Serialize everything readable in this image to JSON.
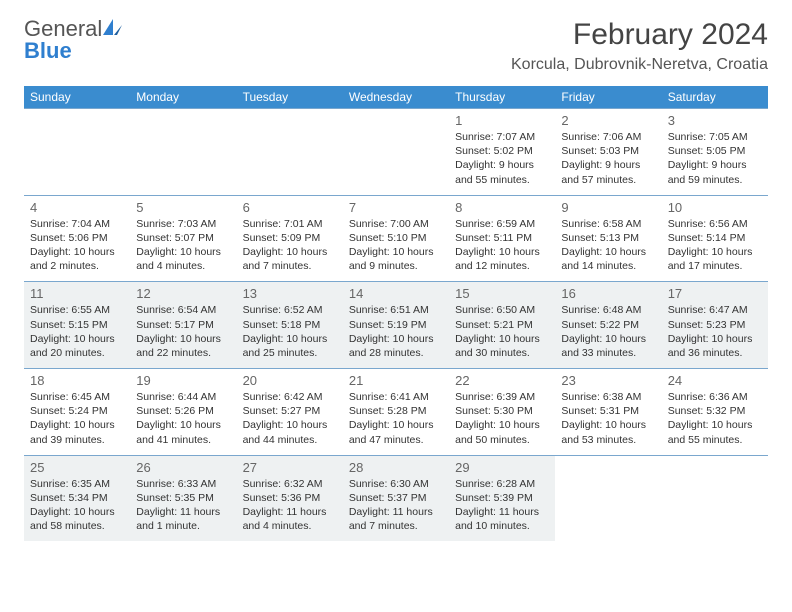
{
  "logo": {
    "line1": "General",
    "line2": "Blue"
  },
  "title": "February 2024",
  "location": "Korcula, Dubrovnik-Neretva, Croatia",
  "header_bg": "#3a8ccf",
  "days_of_week": [
    "Sunday",
    "Monday",
    "Tuesday",
    "Wednesday",
    "Thursday",
    "Friday",
    "Saturday"
  ],
  "weeks": [
    [
      null,
      null,
      null,
      null,
      {
        "n": "1",
        "sr": "7:07 AM",
        "ss": "5:02 PM",
        "dl": "9 hours and 55 minutes."
      },
      {
        "n": "2",
        "sr": "7:06 AM",
        "ss": "5:03 PM",
        "dl": "9 hours and 57 minutes."
      },
      {
        "n": "3",
        "sr": "7:05 AM",
        "ss": "5:05 PM",
        "dl": "9 hours and 59 minutes."
      }
    ],
    [
      {
        "n": "4",
        "sr": "7:04 AM",
        "ss": "5:06 PM",
        "dl": "10 hours and 2 minutes."
      },
      {
        "n": "5",
        "sr": "7:03 AM",
        "ss": "5:07 PM",
        "dl": "10 hours and 4 minutes."
      },
      {
        "n": "6",
        "sr": "7:01 AM",
        "ss": "5:09 PM",
        "dl": "10 hours and 7 minutes."
      },
      {
        "n": "7",
        "sr": "7:00 AM",
        "ss": "5:10 PM",
        "dl": "10 hours and 9 minutes."
      },
      {
        "n": "8",
        "sr": "6:59 AM",
        "ss": "5:11 PM",
        "dl": "10 hours and 12 minutes."
      },
      {
        "n": "9",
        "sr": "6:58 AM",
        "ss": "5:13 PM",
        "dl": "10 hours and 14 minutes."
      },
      {
        "n": "10",
        "sr": "6:56 AM",
        "ss": "5:14 PM",
        "dl": "10 hours and 17 minutes."
      }
    ],
    [
      {
        "n": "11",
        "sr": "6:55 AM",
        "ss": "5:15 PM",
        "dl": "10 hours and 20 minutes."
      },
      {
        "n": "12",
        "sr": "6:54 AM",
        "ss": "5:17 PM",
        "dl": "10 hours and 22 minutes."
      },
      {
        "n": "13",
        "sr": "6:52 AM",
        "ss": "5:18 PM",
        "dl": "10 hours and 25 minutes."
      },
      {
        "n": "14",
        "sr": "6:51 AM",
        "ss": "5:19 PM",
        "dl": "10 hours and 28 minutes."
      },
      {
        "n": "15",
        "sr": "6:50 AM",
        "ss": "5:21 PM",
        "dl": "10 hours and 30 minutes."
      },
      {
        "n": "16",
        "sr": "6:48 AM",
        "ss": "5:22 PM",
        "dl": "10 hours and 33 minutes."
      },
      {
        "n": "17",
        "sr": "6:47 AM",
        "ss": "5:23 PM",
        "dl": "10 hours and 36 minutes."
      }
    ],
    [
      {
        "n": "18",
        "sr": "6:45 AM",
        "ss": "5:24 PM",
        "dl": "10 hours and 39 minutes."
      },
      {
        "n": "19",
        "sr": "6:44 AM",
        "ss": "5:26 PM",
        "dl": "10 hours and 41 minutes."
      },
      {
        "n": "20",
        "sr": "6:42 AM",
        "ss": "5:27 PM",
        "dl": "10 hours and 44 minutes."
      },
      {
        "n": "21",
        "sr": "6:41 AM",
        "ss": "5:28 PM",
        "dl": "10 hours and 47 minutes."
      },
      {
        "n": "22",
        "sr": "6:39 AM",
        "ss": "5:30 PM",
        "dl": "10 hours and 50 minutes."
      },
      {
        "n": "23",
        "sr": "6:38 AM",
        "ss": "5:31 PM",
        "dl": "10 hours and 53 minutes."
      },
      {
        "n": "24",
        "sr": "6:36 AM",
        "ss": "5:32 PM",
        "dl": "10 hours and 55 minutes."
      }
    ],
    [
      {
        "n": "25",
        "sr": "6:35 AM",
        "ss": "5:34 PM",
        "dl": "10 hours and 58 minutes."
      },
      {
        "n": "26",
        "sr": "6:33 AM",
        "ss": "5:35 PM",
        "dl": "11 hours and 1 minute."
      },
      {
        "n": "27",
        "sr": "6:32 AM",
        "ss": "5:36 PM",
        "dl": "11 hours and 4 minutes."
      },
      {
        "n": "28",
        "sr": "6:30 AM",
        "ss": "5:37 PM",
        "dl": "11 hours and 7 minutes."
      },
      {
        "n": "29",
        "sr": "6:28 AM",
        "ss": "5:39 PM",
        "dl": "11 hours and 10 minutes."
      },
      null,
      null
    ]
  ],
  "labels": {
    "sunrise": "Sunrise:",
    "sunset": "Sunset:",
    "daylight": "Daylight:"
  },
  "shaded_weeks": [
    2,
    4
  ]
}
